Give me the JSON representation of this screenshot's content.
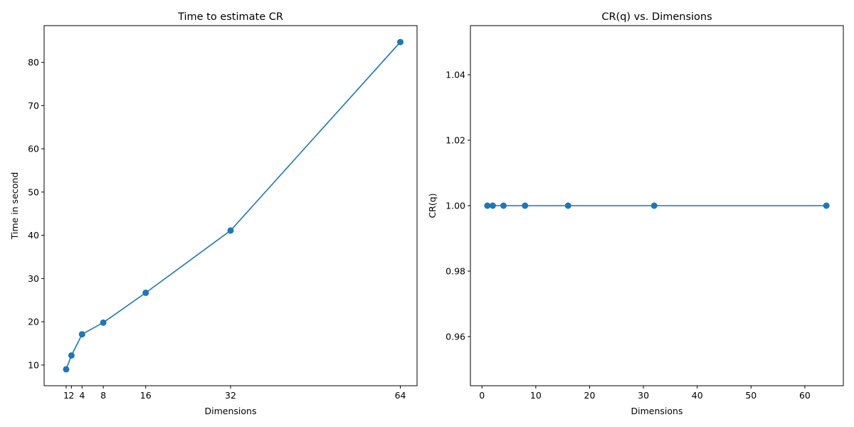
{
  "chart_data": [
    {
      "type": "line",
      "title": "Time to estimate CR",
      "xlabel": "Dimensions",
      "ylabel": "Time in second",
      "xlim": [
        -3.15,
        67.15
      ],
      "ylim": [
        5.2,
        88.5
      ],
      "xticks": [
        {
          "value": 1,
          "label": "1"
        },
        {
          "value": 2,
          "label": "2"
        },
        {
          "value": 4,
          "label": "4"
        },
        {
          "value": 8,
          "label": "8"
        },
        {
          "value": 16,
          "label": "16"
        },
        {
          "value": 32,
          "label": "32"
        },
        {
          "value": 64,
          "label": "64"
        }
      ],
      "yticks": [
        {
          "value": 10,
          "label": "10"
        },
        {
          "value": 20,
          "label": "20"
        },
        {
          "value": 30,
          "label": "30"
        },
        {
          "value": 40,
          "label": "40"
        },
        {
          "value": 50,
          "label": "50"
        },
        {
          "value": 60,
          "label": "60"
        },
        {
          "value": 70,
          "label": "70"
        },
        {
          "value": 80,
          "label": "80"
        }
      ],
      "grid": false,
      "series": [
        {
          "color": "#1f77b4",
          "marker": "circle",
          "x": [
            1,
            2,
            4,
            8,
            16,
            32,
            64
          ],
          "y": [
            9.0,
            12.2,
            17.1,
            19.8,
            26.7,
            41.1,
            84.7
          ]
        }
      ]
    },
    {
      "type": "line",
      "title": "CR(q) vs. Dimensions",
      "xlabel": "Dimensions",
      "ylabel": "CR(q)",
      "xlim": [
        -2.15,
        67.15
      ],
      "ylim": [
        0.945,
        1.055
      ],
      "xticks": [
        {
          "value": 0,
          "label": "0"
        },
        {
          "value": 10,
          "label": "10"
        },
        {
          "value": 20,
          "label": "20"
        },
        {
          "value": 30,
          "label": "30"
        },
        {
          "value": 40,
          "label": "40"
        },
        {
          "value": 50,
          "label": "50"
        },
        {
          "value": 60,
          "label": "60"
        }
      ],
      "yticks": [
        {
          "value": 0.96,
          "label": "0.96"
        },
        {
          "value": 0.98,
          "label": "0.98"
        },
        {
          "value": 1.0,
          "label": "1.00"
        },
        {
          "value": 1.02,
          "label": "1.02"
        },
        {
          "value": 1.04,
          "label": "1.04"
        }
      ],
      "grid": false,
      "series": [
        {
          "color": "#1f77b4",
          "marker": "circle",
          "x": [
            1,
            2,
            4,
            8,
            16,
            32,
            64
          ],
          "y": [
            1.0,
            1.0,
            1.0,
            1.0,
            1.0,
            1.0,
            1.0
          ]
        }
      ]
    }
  ]
}
